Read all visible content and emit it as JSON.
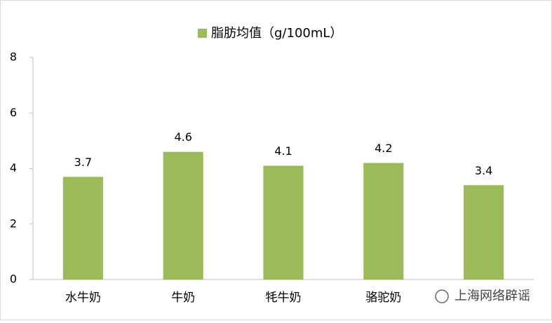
{
  "chart_data": {
    "type": "bar",
    "series": [
      {
        "name": "脂肪均值（g/100mL）",
        "color": "#9bbb59",
        "values": [
          3.7,
          4.6,
          4.1,
          4.2,
          3.4
        ]
      }
    ],
    "categories": [
      "水牛奶",
      "牛奶",
      "牦牛奶",
      "骆驼奶",
      null
    ],
    "ylim": [
      0,
      8
    ],
    "yticks": [
      0,
      2,
      4,
      6,
      8
    ],
    "grid": false,
    "legend": "top",
    "watermark": "上海网络辟谣"
  }
}
